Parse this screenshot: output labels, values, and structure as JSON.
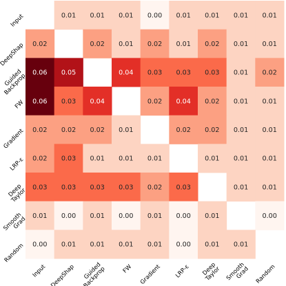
{
  "chart_data": {
    "type": "heatmap",
    "title": "",
    "xlabel": "",
    "ylabel": "",
    "rows": [
      "Input",
      "DeepShap",
      "Guided\nBackprop",
      "FW",
      "Gradient",
      "LRP-ε",
      "Deep\nTaylor",
      "Smooth\nGrad",
      "Random"
    ],
    "columns": [
      "Input",
      "DeepShap",
      "Guided\nBackprop",
      "FW",
      "Gradient",
      "LRP-ε",
      "Deep\nTaylor",
      "Smooth\nGrad",
      "Random"
    ],
    "values": [
      [
        null,
        0.01,
        0.01,
        0.01,
        0.0,
        0.01,
        0.01,
        0.01,
        0.01
      ],
      [
        0.02,
        null,
        0.02,
        0.01,
        0.02,
        0.01,
        0.02,
        0.01,
        0.01
      ],
      [
        0.06,
        0.05,
        null,
        0.04,
        0.03,
        0.03,
        0.03,
        0.01,
        0.02
      ],
      [
        0.06,
        0.03,
        0.04,
        null,
        0.02,
        0.04,
        0.02,
        0.01,
        0.01
      ],
      [
        0.02,
        0.02,
        0.02,
        0.01,
        null,
        0.02,
        0.02,
        0.01,
        0.01
      ],
      [
        0.02,
        0.03,
        0.01,
        0.01,
        0.01,
        null,
        0.01,
        0.01,
        0.01
      ],
      [
        0.03,
        0.03,
        0.03,
        0.03,
        0.02,
        0.03,
        null,
        0.01,
        0.01
      ],
      [
        0.01,
        0.0,
        0.01,
        0.0,
        0.01,
        0.0,
        0.01,
        null,
        0.0
      ],
      [
        0.0,
        0.01,
        0.01,
        0.01,
        0.01,
        0.0,
        0.01,
        0.01,
        null
      ]
    ],
    "color_scale": {
      "name": "Reds",
      "min": 0.0,
      "max": 0.06
    },
    "diagonal": "blank",
    "colorbar": false,
    "grid": false,
    "legend": "none"
  }
}
